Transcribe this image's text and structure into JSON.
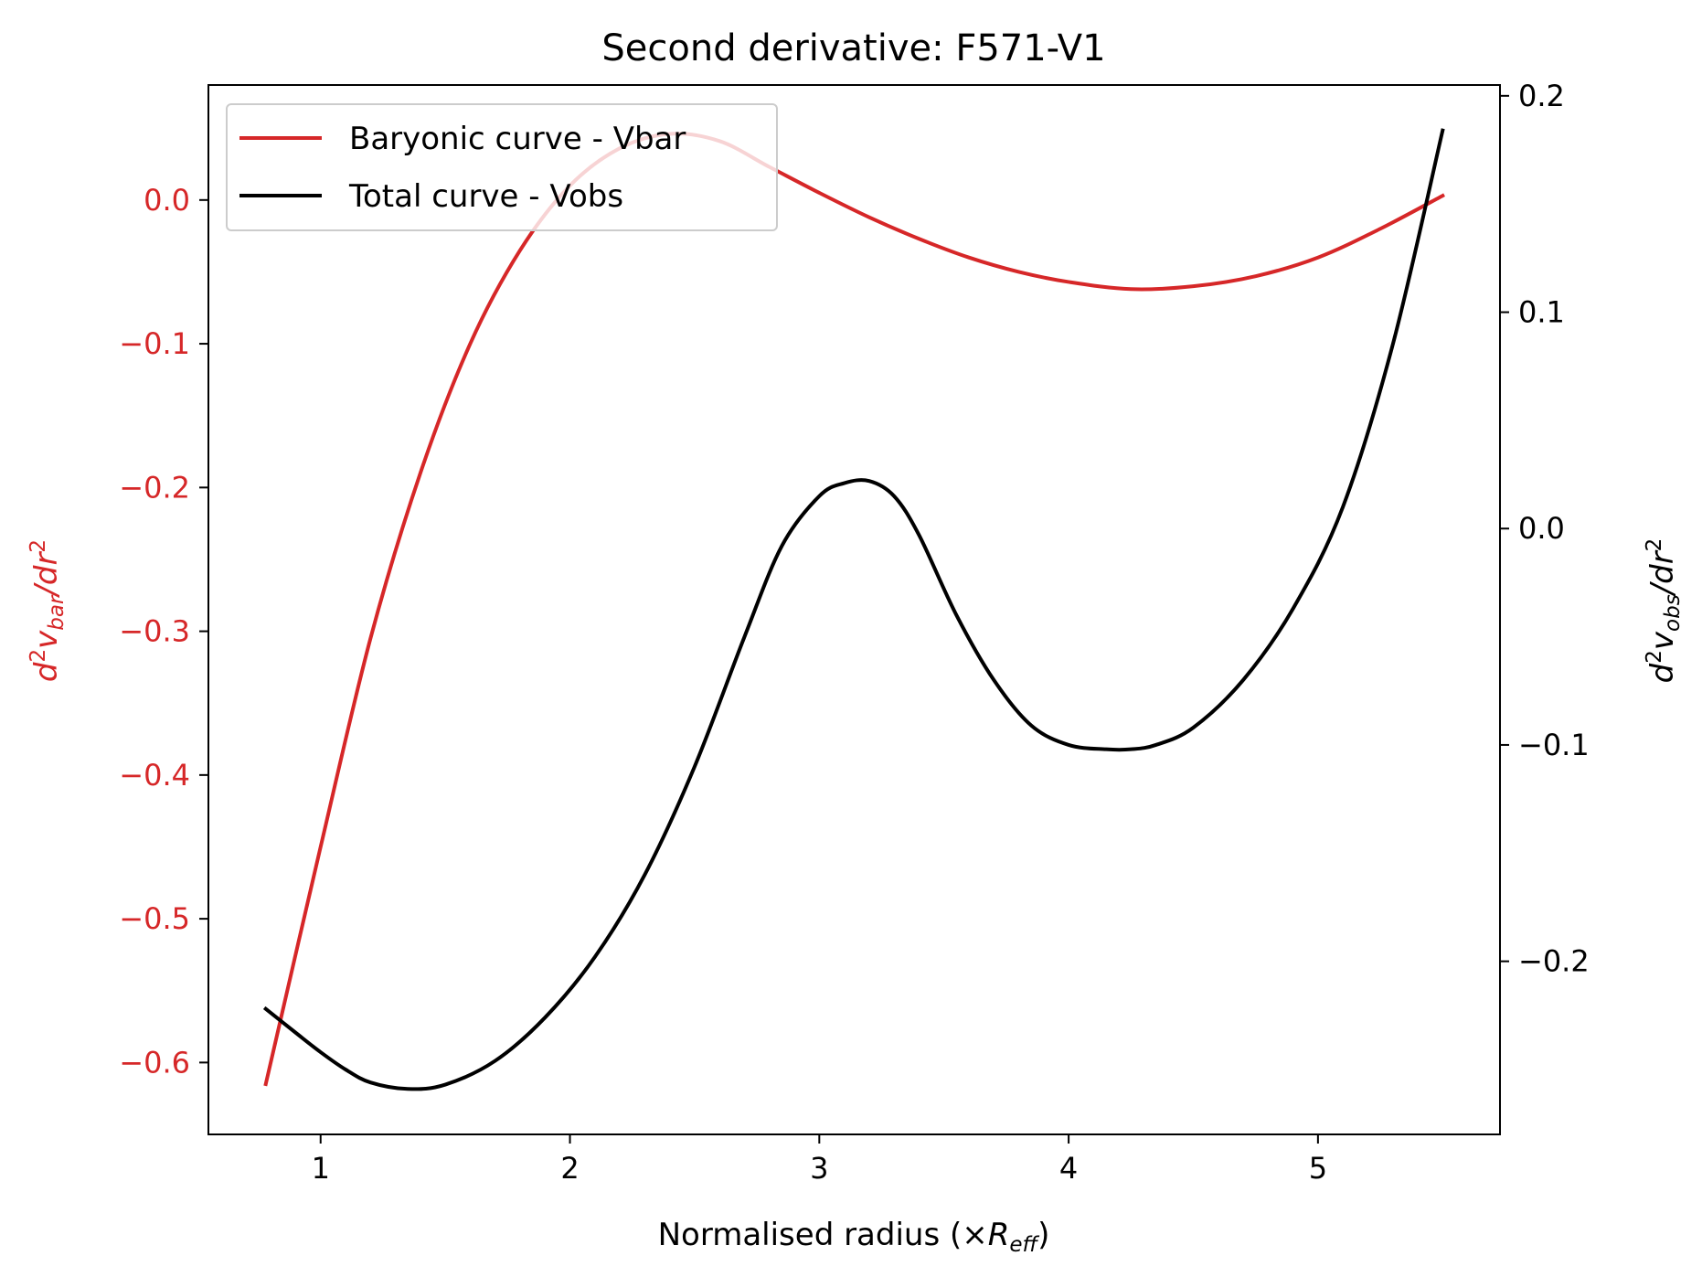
{
  "chart_data": {
    "type": "line",
    "title": "Second derivative: F571-V1",
    "xlabel": {
      "prefix": "Normalised radius (×",
      "sym": "R",
      "sub": "eff",
      "suffix": ")"
    },
    "ylabel_left": {
      "d": "d",
      "sup1": "2",
      "v": "v",
      "sub": "bar",
      "rest": "/dr",
      "sup2": "2"
    },
    "ylabel_right": {
      "d": "d",
      "sup1": "2",
      "v": "v",
      "sub": "obs",
      "rest": "/dr",
      "sup2": "2"
    },
    "xlim": [
      0.55,
      5.73
    ],
    "ylim_left": [
      -0.65,
      0.08
    ],
    "ylim_right": [
      -0.28,
      0.205
    ],
    "xticks": [
      1,
      2,
      3,
      4,
      5
    ],
    "xtick_labels": [
      "1",
      "2",
      "3",
      "4",
      "5"
    ],
    "yticks_left": [
      0.0,
      -0.1,
      -0.2,
      -0.3,
      -0.4,
      -0.5,
      -0.6
    ],
    "ytick_labels_left": [
      "0.0",
      "−0.1",
      "−0.2",
      "−0.3",
      "−0.4",
      "−0.5",
      "−0.6"
    ],
    "yticks_right": [
      0.2,
      0.1,
      0.0,
      -0.1,
      -0.2
    ],
    "ytick_labels_right": [
      "0.2",
      "0.1",
      "0.0",
      "−0.1",
      "−0.2"
    ],
    "legend_position": "upper-left",
    "colors": {
      "bar": "#d62728",
      "obs": "#000000",
      "left_axis": "#d62728",
      "right_axis": "#000000"
    },
    "series": [
      {
        "name": "Baryonic curve - Vbar",
        "axis": "left",
        "color": "#d62728",
        "x": [
          0.78,
          1.0,
          1.2,
          1.4,
          1.6,
          1.8,
          2.0,
          2.2,
          2.4,
          2.6,
          2.8,
          3.0,
          3.2,
          3.4,
          3.6,
          3.8,
          4.0,
          4.25,
          4.5,
          4.75,
          5.0,
          5.25,
          5.5
        ],
        "y": [
          -0.615,
          -0.45,
          -0.305,
          -0.19,
          -0.1,
          -0.035,
          0.01,
          0.036,
          0.046,
          0.041,
          0.023,
          0.005,
          -0.012,
          -0.027,
          -0.04,
          -0.05,
          -0.057,
          -0.062,
          -0.06,
          -0.053,
          -0.04,
          -0.02,
          0.003
        ]
      },
      {
        "name": "Total curve - Vobs",
        "axis": "right",
        "color": "#000000",
        "x": [
          0.78,
          0.9,
          1.0,
          1.1,
          1.2,
          1.35,
          1.5,
          1.7,
          1.9,
          2.1,
          2.3,
          2.5,
          2.7,
          2.85,
          3.0,
          3.1,
          3.2,
          3.3,
          3.4,
          3.55,
          3.7,
          3.85,
          4.0,
          4.15,
          4.25,
          4.35,
          4.5,
          4.7,
          4.9,
          5.1,
          5.3,
          5.5
        ],
        "y": [
          -0.222,
          -0.233,
          -0.242,
          -0.25,
          -0.256,
          -0.259,
          -0.257,
          -0.246,
          -0.226,
          -0.198,
          -0.16,
          -0.11,
          -0.05,
          -0.008,
          0.015,
          0.021,
          0.022,
          0.015,
          -0.003,
          -0.04,
          -0.07,
          -0.091,
          -0.1,
          -0.102,
          -0.102,
          -0.1,
          -0.092,
          -0.07,
          -0.037,
          0.01,
          0.085,
          0.184
        ]
      }
    ]
  }
}
